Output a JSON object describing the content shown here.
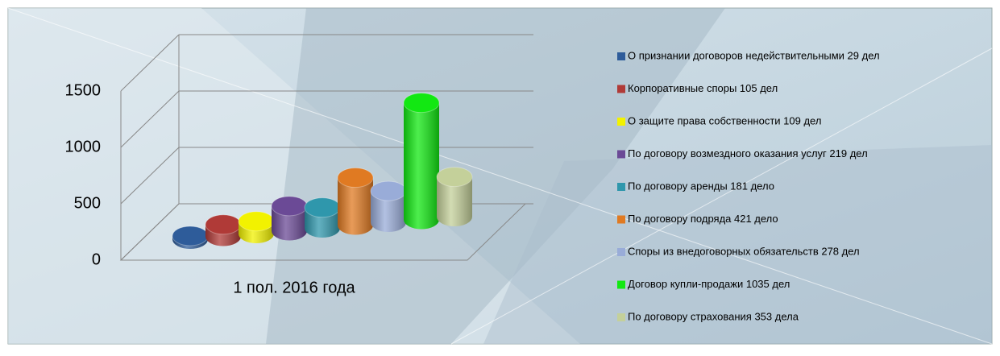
{
  "chart_data": {
    "type": "bar3d",
    "categories": [
      "1 пол. 2016 года"
    ],
    "ylim": [
      0,
      1500
    ],
    "yticks": [
      0,
      500,
      1000,
      1500
    ],
    "grid": true,
    "series": [
      {
        "name": "О признании договоров недействительными 29 дел",
        "color": "#2e5c9a",
        "values": [
          29
        ]
      },
      {
        "name": "Корпоративные споры 105 дел",
        "color": "#b03a37",
        "values": [
          105
        ]
      },
      {
        "name": "О защите права собственности 109 дел",
        "color": "#f2f200",
        "values": [
          109
        ]
      },
      {
        "name": "По договору возмездного оказания услуг 219 дел",
        "color": "#6b4a96",
        "values": [
          219
        ]
      },
      {
        "name": "По договору аренды 181 дело",
        "color": "#2f97ac",
        "values": [
          181
        ]
      },
      {
        "name": "По договору подряда 421 дело",
        "color": "#e07a22",
        "values": [
          421
        ]
      },
      {
        "name": "Споры из внедоговорных обязательств  278 дел",
        "color": "#99acd8",
        "values": [
          278
        ]
      },
      {
        "name": "Договор купли-продажи 1035 дел",
        "color": "#12e812",
        "values": [
          1035
        ]
      },
      {
        "name": "По договору страхования 353 дела",
        "color": "#c4d09a",
        "values": [
          353
        ]
      }
    ]
  }
}
